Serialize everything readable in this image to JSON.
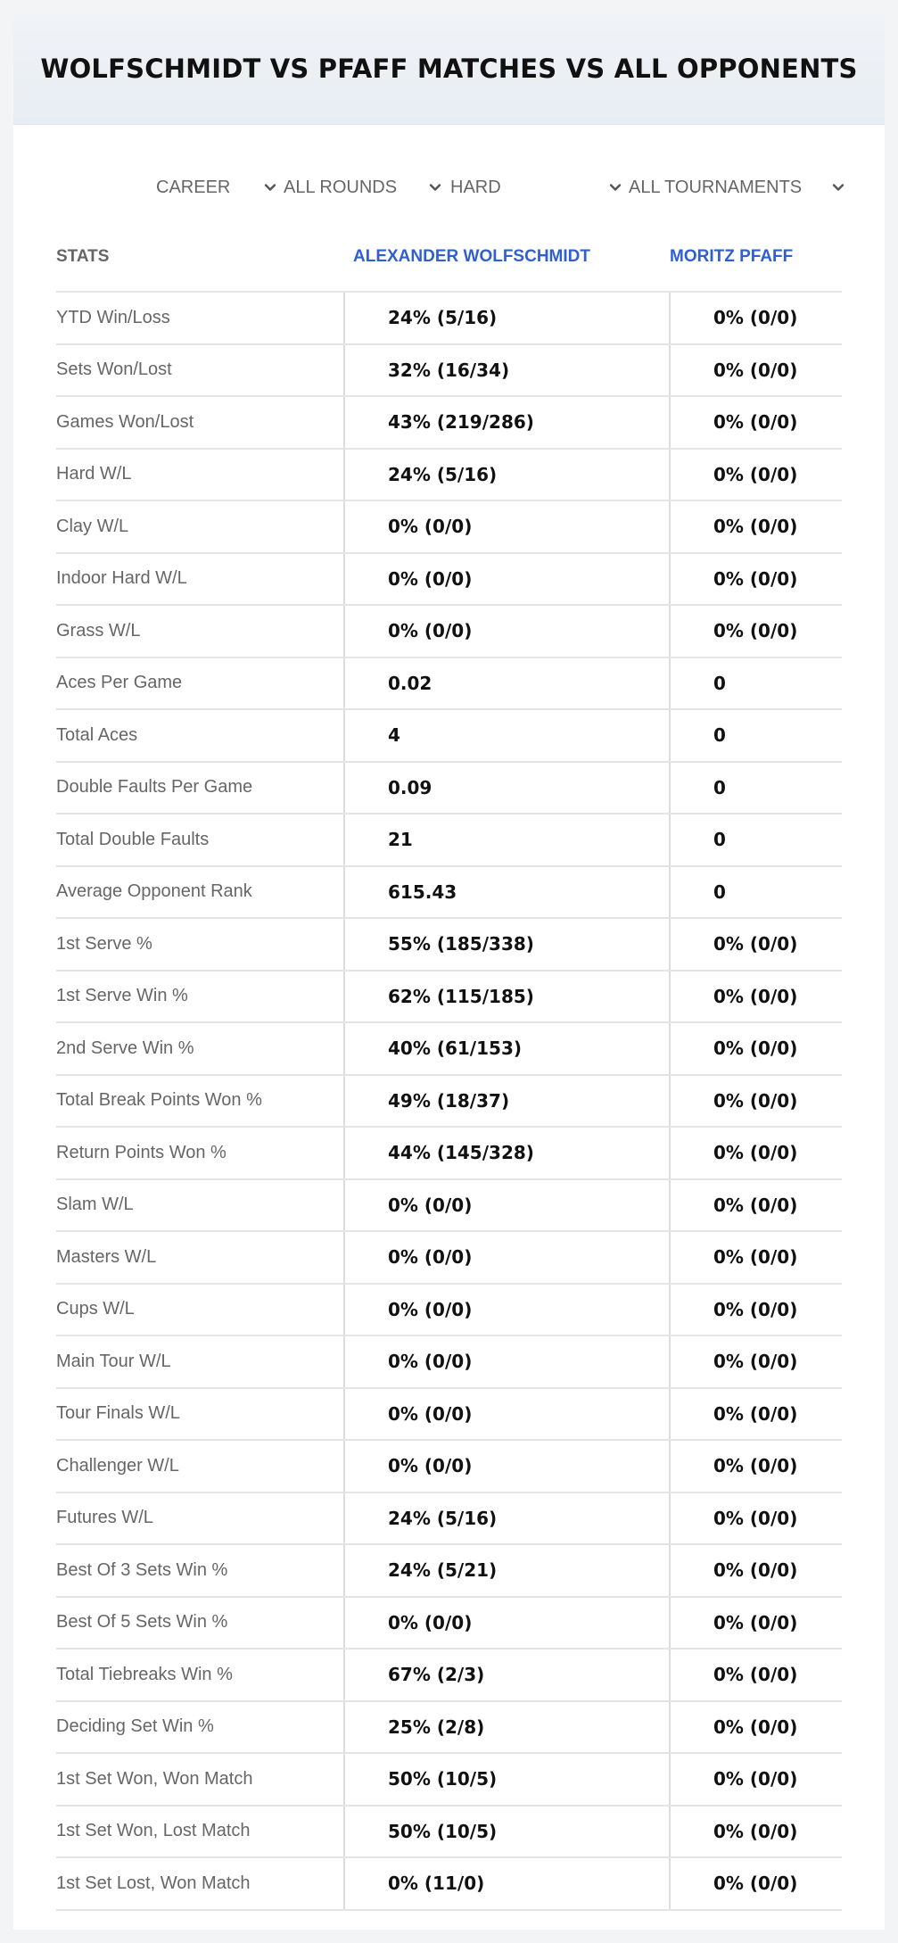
{
  "page": {
    "title": "WOLFSCHMIDT VS PFAFF MATCHES VS ALL OPPONENTS"
  },
  "filters": [
    {
      "value": "CAREER",
      "icon": "chevron-down-icon"
    },
    {
      "value": "ALL ROUNDS",
      "icon": "chevron-down-icon"
    },
    {
      "value": "HARD",
      "icon": "chevron-down-icon"
    },
    {
      "value": "ALL TOURNAMENTS",
      "icon": "chevron-down-icon"
    }
  ],
  "table": {
    "headers": {
      "stat": "STATS",
      "player1": "ALEXANDER WOLFSCHMIDT",
      "player2": "MORITZ PFAFF"
    },
    "rows": [
      {
        "label": "YTD Win/Loss",
        "p1": "24% (5/16)",
        "p2": "0% (0/0)"
      },
      {
        "label": "Sets Won/Lost",
        "p1": "32% (16/34)",
        "p2": "0% (0/0)"
      },
      {
        "label": "Games Won/Lost",
        "p1": "43% (219/286)",
        "p2": "0% (0/0)"
      },
      {
        "label": "Hard W/L",
        "p1": "24% (5/16)",
        "p2": "0% (0/0)"
      },
      {
        "label": "Clay W/L",
        "p1": "0% (0/0)",
        "p2": "0% (0/0)"
      },
      {
        "label": "Indoor Hard W/L",
        "p1": "0% (0/0)",
        "p2": "0% (0/0)"
      },
      {
        "label": "Grass W/L",
        "p1": "0% (0/0)",
        "p2": "0% (0/0)"
      },
      {
        "label": "Aces Per Game",
        "p1": "0.02",
        "p2": "0"
      },
      {
        "label": "Total Aces",
        "p1": "4",
        "p2": "0"
      },
      {
        "label": "Double Faults Per Game",
        "p1": "0.09",
        "p2": "0"
      },
      {
        "label": "Total Double Faults",
        "p1": "21",
        "p2": "0"
      },
      {
        "label": "Average Opponent Rank",
        "p1": "615.43",
        "p2": "0"
      },
      {
        "label": "1st Serve %",
        "p1": "55% (185/338)",
        "p2": "0% (0/0)"
      },
      {
        "label": "1st Serve Win %",
        "p1": "62% (115/185)",
        "p2": "0% (0/0)"
      },
      {
        "label": "2nd Serve Win %",
        "p1": "40% (61/153)",
        "p2": "0% (0/0)"
      },
      {
        "label": "Total Break Points Won %",
        "p1": "49% (18/37)",
        "p2": "0% (0/0)"
      },
      {
        "label": "Return Points Won %",
        "p1": "44% (145/328)",
        "p2": "0% (0/0)"
      },
      {
        "label": "Slam W/L",
        "p1": "0% (0/0)",
        "p2": "0% (0/0)"
      },
      {
        "label": "Masters W/L",
        "p1": "0% (0/0)",
        "p2": "0% (0/0)"
      },
      {
        "label": "Cups W/L",
        "p1": "0% (0/0)",
        "p2": "0% (0/0)"
      },
      {
        "label": "Main Tour W/L",
        "p1": "0% (0/0)",
        "p2": "0% (0/0)"
      },
      {
        "label": "Tour Finals W/L",
        "p1": "0% (0/0)",
        "p2": "0% (0/0)"
      },
      {
        "label": "Challenger W/L",
        "p1": "0% (0/0)",
        "p2": "0% (0/0)"
      },
      {
        "label": "Futures W/L",
        "p1": "24% (5/16)",
        "p2": "0% (0/0)"
      },
      {
        "label": "Best Of 3 Sets Win %",
        "p1": "24% (5/21)",
        "p2": "0% (0/0)"
      },
      {
        "label": "Best Of 5 Sets Win %",
        "p1": "0% (0/0)",
        "p2": "0% (0/0)"
      },
      {
        "label": "Total Tiebreaks Win %",
        "p1": "67% (2/3)",
        "p2": "0% (0/0)"
      },
      {
        "label": "Deciding Set Win %",
        "p1": "25% (2/8)",
        "p2": "0% (0/0)"
      },
      {
        "label": "1st Set Won, Won Match",
        "p1": "50% (10/5)",
        "p2": "0% (0/0)"
      },
      {
        "label": "1st Set Won, Lost Match",
        "p1": "50% (10/5)",
        "p2": "0% (0/0)"
      },
      {
        "label": "1st Set Lost, Won Match",
        "p1": "0% (11/0)",
        "p2": "0% (0/0)"
      }
    ]
  },
  "colors": {
    "accent": "#3060d0",
    "label": "#666666",
    "value": "#111111",
    "divider": "#e4e4e4",
    "header_bg": "#e8edf3",
    "page_bg": "#f3f4f6"
  }
}
